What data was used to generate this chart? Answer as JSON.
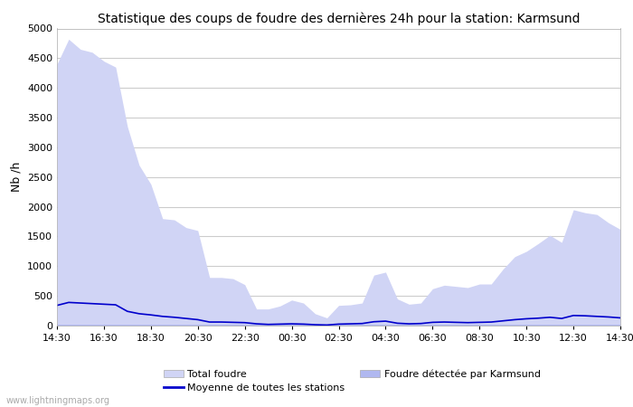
{
  "title": "Statistique des coups de foudre des dernières 24h pour la station: Karmsund",
  "ylabel": "Nb /h",
  "ylim": [
    0,
    5000
  ],
  "yticks": [
    0,
    500,
    1000,
    1500,
    2000,
    2500,
    3000,
    3500,
    4000,
    4500,
    5000
  ],
  "xtick_labels": [
    "14:30",
    "16:30",
    "18:30",
    "20:30",
    "22:30",
    "00:30",
    "02:30",
    "04:30",
    "06:30",
    "08:30",
    "10:30",
    "12:30",
    "14:30"
  ],
  "background_color": "#ffffff",
  "plot_bg_color": "#ffffff",
  "grid_color": "#cccccc",
  "total_foudre_color": "#d0d4f5",
  "karmsund_color": "#b0b8f0",
  "moyenne_color": "#0000cc",
  "watermark": "www.lightningmaps.org",
  "total_foudre": [
    4400,
    4820,
    4650,
    4600,
    4450,
    4350,
    3350,
    2700,
    2380,
    1800,
    1780,
    1650,
    1600,
    810,
    810,
    790,
    690,
    280,
    280,
    330,
    430,
    380,
    200,
    130,
    340,
    350,
    380,
    850,
    900,
    450,
    360,
    380,
    620,
    680,
    660,
    640,
    700,
    700,
    950,
    1160,
    1250,
    1380,
    1520,
    1400,
    1950,
    1900,
    1870,
    1730,
    1620
  ],
  "karmsund": [
    10,
    10,
    10,
    10,
    10,
    10,
    10,
    10,
    10,
    10,
    10,
    10,
    10,
    10,
    10,
    10,
    10,
    10,
    10,
    10,
    10,
    10,
    10,
    10,
    10,
    10,
    10,
    10,
    10,
    10,
    10,
    10,
    10,
    10,
    10,
    10,
    10,
    10,
    10,
    10,
    10,
    10,
    10,
    10,
    10,
    10,
    10,
    10,
    10
  ],
  "moyenne": [
    340,
    390,
    380,
    370,
    360,
    350,
    240,
    200,
    180,
    155,
    140,
    120,
    100,
    60,
    60,
    55,
    50,
    30,
    20,
    25,
    30,
    25,
    15,
    10,
    25,
    30,
    35,
    65,
    75,
    40,
    30,
    35,
    55,
    60,
    55,
    50,
    55,
    60,
    80,
    100,
    115,
    125,
    140,
    120,
    170,
    165,
    155,
    145,
    130
  ]
}
